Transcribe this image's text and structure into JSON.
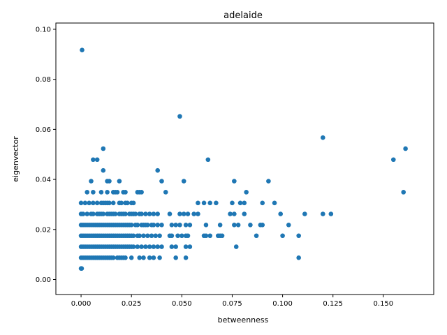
{
  "chart_data": {
    "type": "scatter",
    "title": "adelaide",
    "xlabel": "betweenness",
    "ylabel": "eigenvector",
    "xlim": [
      -0.0125,
      0.175
    ],
    "ylim": [
      -0.006,
      0.1025
    ],
    "xticks": [
      0.0,
      0.025,
      0.05,
      0.075,
      0.1,
      0.125,
      0.15
    ],
    "yticks": [
      0.0,
      0.02,
      0.04,
      0.06,
      0.08,
      0.1
    ],
    "xtick_labels": [
      "0.000",
      "0.025",
      "0.050",
      "0.075",
      "0.100",
      "0.125",
      "0.150"
    ],
    "ytick_labels": [
      "0.00",
      "0.02",
      "0.04",
      "0.06",
      "0.08",
      "0.10"
    ],
    "grid": false,
    "marker_color": "#1f77b4",
    "points": [
      [
        0.0005,
        0.0917
      ],
      [
        0.049,
        0.0652
      ],
      [
        0.12,
        0.0567
      ],
      [
        0.161,
        0.0523
      ],
      [
        0.011,
        0.0523
      ],
      [
        0.155,
        0.0479
      ],
      [
        0.063,
        0.0479
      ],
      [
        0.006,
        0.0479
      ],
      [
        0.008,
        0.0479
      ],
      [
        0.011,
        0.0436
      ],
      [
        0.038,
        0.0436
      ],
      [
        0.005,
        0.0393
      ],
      [
        0.013,
        0.0393
      ],
      [
        0.014,
        0.0393
      ],
      [
        0.019,
        0.0393
      ],
      [
        0.04,
        0.0393
      ],
      [
        0.051,
        0.0393
      ],
      [
        0.076,
        0.0393
      ],
      [
        0.093,
        0.0393
      ],
      [
        0.16,
        0.0349
      ],
      [
        0.003,
        0.0349
      ],
      [
        0.006,
        0.0349
      ],
      [
        0.01,
        0.0349
      ],
      [
        0.013,
        0.0349
      ],
      [
        0.016,
        0.0349
      ],
      [
        0.017,
        0.0349
      ],
      [
        0.018,
        0.0349
      ],
      [
        0.021,
        0.0349
      ],
      [
        0.022,
        0.0349
      ],
      [
        0.028,
        0.0349
      ],
      [
        0.029,
        0.0349
      ],
      [
        0.03,
        0.0349
      ],
      [
        0.042,
        0.0349
      ],
      [
        0.082,
        0.0349
      ],
      [
        0.0,
        0.0306
      ],
      [
        0.002,
        0.0306
      ],
      [
        0.004,
        0.0306
      ],
      [
        0.006,
        0.0306
      ],
      [
        0.008,
        0.0306
      ],
      [
        0.01,
        0.0306
      ],
      [
        0.011,
        0.0306
      ],
      [
        0.012,
        0.0306
      ],
      [
        0.013,
        0.0306
      ],
      [
        0.014,
        0.0306
      ],
      [
        0.016,
        0.0306
      ],
      [
        0.019,
        0.0306
      ],
      [
        0.02,
        0.0306
      ],
      [
        0.022,
        0.0306
      ],
      [
        0.023,
        0.0306
      ],
      [
        0.025,
        0.0306
      ],
      [
        0.026,
        0.0306
      ],
      [
        0.058,
        0.0306
      ],
      [
        0.061,
        0.0306
      ],
      [
        0.064,
        0.0306
      ],
      [
        0.067,
        0.0306
      ],
      [
        0.075,
        0.0306
      ],
      [
        0.079,
        0.0306
      ],
      [
        0.081,
        0.0306
      ],
      [
        0.09,
        0.0306
      ],
      [
        0.096,
        0.0306
      ],
      [
        0.0,
        0.0262
      ],
      [
        0.001,
        0.0262
      ],
      [
        0.003,
        0.0262
      ],
      [
        0.005,
        0.0262
      ],
      [
        0.006,
        0.0262
      ],
      [
        0.008,
        0.0262
      ],
      [
        0.009,
        0.0262
      ],
      [
        0.01,
        0.0262
      ],
      [
        0.011,
        0.0262
      ],
      [
        0.013,
        0.0262
      ],
      [
        0.014,
        0.0262
      ],
      [
        0.015,
        0.0262
      ],
      [
        0.016,
        0.0262
      ],
      [
        0.017,
        0.0262
      ],
      [
        0.019,
        0.0262
      ],
      [
        0.02,
        0.0262
      ],
      [
        0.021,
        0.0262
      ],
      [
        0.022,
        0.0262
      ],
      [
        0.024,
        0.0262
      ],
      [
        0.025,
        0.0262
      ],
      [
        0.026,
        0.0262
      ],
      [
        0.027,
        0.0262
      ],
      [
        0.029,
        0.0262
      ],
      [
        0.03,
        0.0262
      ],
      [
        0.032,
        0.0262
      ],
      [
        0.034,
        0.0262
      ],
      [
        0.036,
        0.0262
      ],
      [
        0.038,
        0.0262
      ],
      [
        0.044,
        0.0262
      ],
      [
        0.049,
        0.0262
      ],
      [
        0.051,
        0.0262
      ],
      [
        0.053,
        0.0262
      ],
      [
        0.056,
        0.0262
      ],
      [
        0.058,
        0.0262
      ],
      [
        0.074,
        0.0262
      ],
      [
        0.076,
        0.0262
      ],
      [
        0.081,
        0.0262
      ],
      [
        0.099,
        0.0262
      ],
      [
        0.111,
        0.0262
      ],
      [
        0.12,
        0.0262
      ],
      [
        0.124,
        0.0262
      ],
      [
        0.0,
        0.0218
      ],
      [
        0.001,
        0.0218
      ],
      [
        0.002,
        0.0218
      ],
      [
        0.003,
        0.0218
      ],
      [
        0.004,
        0.0218
      ],
      [
        0.005,
        0.0218
      ],
      [
        0.006,
        0.0218
      ],
      [
        0.007,
        0.0218
      ],
      [
        0.008,
        0.0218
      ],
      [
        0.009,
        0.0218
      ],
      [
        0.01,
        0.0218
      ],
      [
        0.011,
        0.0218
      ],
      [
        0.012,
        0.0218
      ],
      [
        0.013,
        0.0218
      ],
      [
        0.014,
        0.0218
      ],
      [
        0.015,
        0.0218
      ],
      [
        0.016,
        0.0218
      ],
      [
        0.017,
        0.0218
      ],
      [
        0.018,
        0.0218
      ],
      [
        0.019,
        0.0218
      ],
      [
        0.02,
        0.0218
      ],
      [
        0.021,
        0.0218
      ],
      [
        0.022,
        0.0218
      ],
      [
        0.023,
        0.0218
      ],
      [
        0.024,
        0.0218
      ],
      [
        0.025,
        0.0218
      ],
      [
        0.027,
        0.0218
      ],
      [
        0.028,
        0.0218
      ],
      [
        0.03,
        0.0218
      ],
      [
        0.031,
        0.0218
      ],
      [
        0.032,
        0.0218
      ],
      [
        0.033,
        0.0218
      ],
      [
        0.035,
        0.0218
      ],
      [
        0.036,
        0.0218
      ],
      [
        0.038,
        0.0218
      ],
      [
        0.04,
        0.0218
      ],
      [
        0.045,
        0.0218
      ],
      [
        0.047,
        0.0218
      ],
      [
        0.049,
        0.0218
      ],
      [
        0.052,
        0.0218
      ],
      [
        0.054,
        0.0218
      ],
      [
        0.062,
        0.0218
      ],
      [
        0.069,
        0.0218
      ],
      [
        0.076,
        0.0218
      ],
      [
        0.078,
        0.0218
      ],
      [
        0.084,
        0.0218
      ],
      [
        0.089,
        0.0218
      ],
      [
        0.09,
        0.0218
      ],
      [
        0.103,
        0.0218
      ],
      [
        0.0,
        0.0175
      ],
      [
        0.001,
        0.0175
      ],
      [
        0.002,
        0.0175
      ],
      [
        0.003,
        0.0175
      ],
      [
        0.004,
        0.0175
      ],
      [
        0.005,
        0.0175
      ],
      [
        0.006,
        0.0175
      ],
      [
        0.007,
        0.0175
      ],
      [
        0.008,
        0.0175
      ],
      [
        0.009,
        0.0175
      ],
      [
        0.01,
        0.0175
      ],
      [
        0.011,
        0.0175
      ],
      [
        0.012,
        0.0175
      ],
      [
        0.013,
        0.0175
      ],
      [
        0.014,
        0.0175
      ],
      [
        0.015,
        0.0175
      ],
      [
        0.016,
        0.0175
      ],
      [
        0.017,
        0.0175
      ],
      [
        0.018,
        0.0175
      ],
      [
        0.019,
        0.0175
      ],
      [
        0.02,
        0.0175
      ],
      [
        0.021,
        0.0175
      ],
      [
        0.022,
        0.0175
      ],
      [
        0.023,
        0.0175
      ],
      [
        0.024,
        0.0175
      ],
      [
        0.025,
        0.0175
      ],
      [
        0.026,
        0.0175
      ],
      [
        0.028,
        0.0175
      ],
      [
        0.029,
        0.0175
      ],
      [
        0.031,
        0.0175
      ],
      [
        0.033,
        0.0175
      ],
      [
        0.035,
        0.0175
      ],
      [
        0.037,
        0.0175
      ],
      [
        0.039,
        0.0175
      ],
      [
        0.044,
        0.0175
      ],
      [
        0.045,
        0.0175
      ],
      [
        0.048,
        0.0175
      ],
      [
        0.05,
        0.0175
      ],
      [
        0.052,
        0.0175
      ],
      [
        0.053,
        0.0175
      ],
      [
        0.061,
        0.0175
      ],
      [
        0.062,
        0.0175
      ],
      [
        0.064,
        0.0175
      ],
      [
        0.068,
        0.0175
      ],
      [
        0.069,
        0.0175
      ],
      [
        0.07,
        0.0175
      ],
      [
        0.087,
        0.0175
      ],
      [
        0.1,
        0.0175
      ],
      [
        0.108,
        0.0175
      ],
      [
        0.0,
        0.0131
      ],
      [
        0.001,
        0.0131
      ],
      [
        0.002,
        0.0131
      ],
      [
        0.003,
        0.0131
      ],
      [
        0.004,
        0.0131
      ],
      [
        0.005,
        0.0131
      ],
      [
        0.006,
        0.0131
      ],
      [
        0.007,
        0.0131
      ],
      [
        0.008,
        0.0131
      ],
      [
        0.009,
        0.0131
      ],
      [
        0.01,
        0.0131
      ],
      [
        0.011,
        0.0131
      ],
      [
        0.012,
        0.0131
      ],
      [
        0.013,
        0.0131
      ],
      [
        0.014,
        0.0131
      ],
      [
        0.015,
        0.0131
      ],
      [
        0.016,
        0.0131
      ],
      [
        0.017,
        0.0131
      ],
      [
        0.018,
        0.0131
      ],
      [
        0.019,
        0.0131
      ],
      [
        0.02,
        0.0131
      ],
      [
        0.021,
        0.0131
      ],
      [
        0.022,
        0.0131
      ],
      [
        0.023,
        0.0131
      ],
      [
        0.024,
        0.0131
      ],
      [
        0.025,
        0.0131
      ],
      [
        0.026,
        0.0131
      ],
      [
        0.028,
        0.0131
      ],
      [
        0.03,
        0.0131
      ],
      [
        0.032,
        0.0131
      ],
      [
        0.034,
        0.0131
      ],
      [
        0.036,
        0.0131
      ],
      [
        0.038,
        0.0131
      ],
      [
        0.04,
        0.0131
      ],
      [
        0.045,
        0.0131
      ],
      [
        0.047,
        0.0131
      ],
      [
        0.052,
        0.0131
      ],
      [
        0.054,
        0.0131
      ],
      [
        0.077,
        0.0131
      ],
      [
        0.0,
        0.0087
      ],
      [
        0.001,
        0.0087
      ],
      [
        0.002,
        0.0087
      ],
      [
        0.003,
        0.0087
      ],
      [
        0.004,
        0.0087
      ],
      [
        0.005,
        0.0087
      ],
      [
        0.006,
        0.0087
      ],
      [
        0.007,
        0.0087
      ],
      [
        0.008,
        0.0087
      ],
      [
        0.009,
        0.0087
      ],
      [
        0.01,
        0.0087
      ],
      [
        0.011,
        0.0087
      ],
      [
        0.012,
        0.0087
      ],
      [
        0.013,
        0.0087
      ],
      [
        0.014,
        0.0087
      ],
      [
        0.015,
        0.0087
      ],
      [
        0.016,
        0.0087
      ],
      [
        0.018,
        0.0087
      ],
      [
        0.019,
        0.0087
      ],
      [
        0.02,
        0.0087
      ],
      [
        0.021,
        0.0087
      ],
      [
        0.022,
        0.0087
      ],
      [
        0.025,
        0.0087
      ],
      [
        0.029,
        0.0087
      ],
      [
        0.031,
        0.0087
      ],
      [
        0.034,
        0.0087
      ],
      [
        0.036,
        0.0087
      ],
      [
        0.039,
        0.0087
      ],
      [
        0.047,
        0.0087
      ],
      [
        0.052,
        0.0087
      ],
      [
        0.108,
        0.0087
      ],
      [
        0.0,
        0.0044
      ],
      [
        0.0003,
        0.0044
      ]
    ]
  }
}
